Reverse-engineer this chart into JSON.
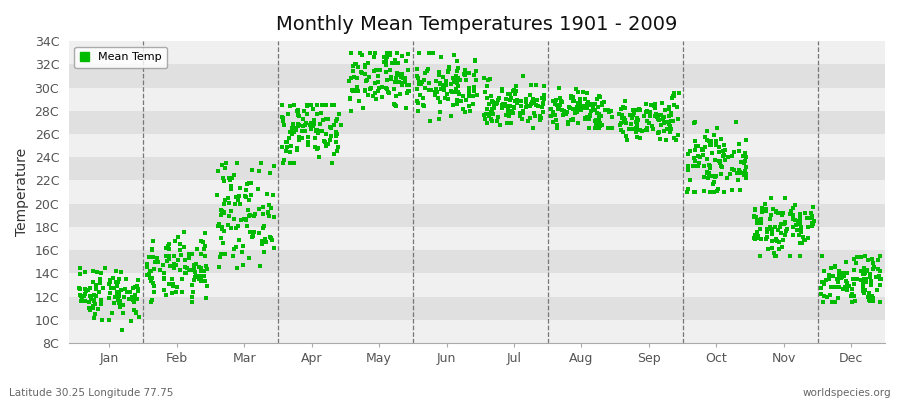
{
  "title": "Monthly Mean Temperatures 1901 - 2009",
  "ylabel": "Temperature",
  "subtitle": "Latitude 30.25 Longitude 77.75",
  "watermark": "worldspecies.org",
  "dot_color": "#00bb00",
  "background_color": "#ffffff",
  "plot_bg_stripe1": "#f0f0f0",
  "plot_bg_stripe2": "#e0e0e0",
  "ylim": [
    8,
    34
  ],
  "ytick_labels": [
    "8C",
    "10C",
    "12C",
    "14C",
    "16C",
    "18C",
    "20C",
    "22C",
    "24C",
    "26C",
    "28C",
    "30C",
    "32C",
    "34C"
  ],
  "ytick_values": [
    8,
    10,
    12,
    14,
    16,
    18,
    20,
    22,
    24,
    26,
    28,
    30,
    32,
    34
  ],
  "months": [
    "Jan",
    "Feb",
    "Mar",
    "Apr",
    "May",
    "Jun",
    "Jul",
    "Aug",
    "Sep",
    "Oct",
    "Nov",
    "Dec"
  ],
  "monthly_mean": [
    12.3,
    14.2,
    19.2,
    26.5,
    30.5,
    30.0,
    28.5,
    28.0,
    27.2,
    23.5,
    18.0,
    13.5
  ],
  "monthly_std": [
    1.2,
    1.4,
    2.2,
    1.5,
    1.5,
    1.3,
    1.0,
    0.9,
    1.0,
    1.3,
    1.4,
    1.2
  ],
  "monthly_min": [
    9.0,
    11.5,
    14.5,
    23.5,
    27.5,
    27.0,
    26.5,
    26.5,
    25.5,
    21.0,
    15.5,
    11.5
  ],
  "monthly_max": [
    14.5,
    18.5,
    23.5,
    28.5,
    33.0,
    33.0,
    31.0,
    30.0,
    29.5,
    27.5,
    20.5,
    15.5
  ],
  "n_years": 109,
  "legend_label": "Mean Temp",
  "marker_size": 8,
  "dashed_line_positions": [
    1,
    3,
    5,
    7,
    9,
    11
  ],
  "title_fontsize": 14,
  "axis_fontsize": 9
}
